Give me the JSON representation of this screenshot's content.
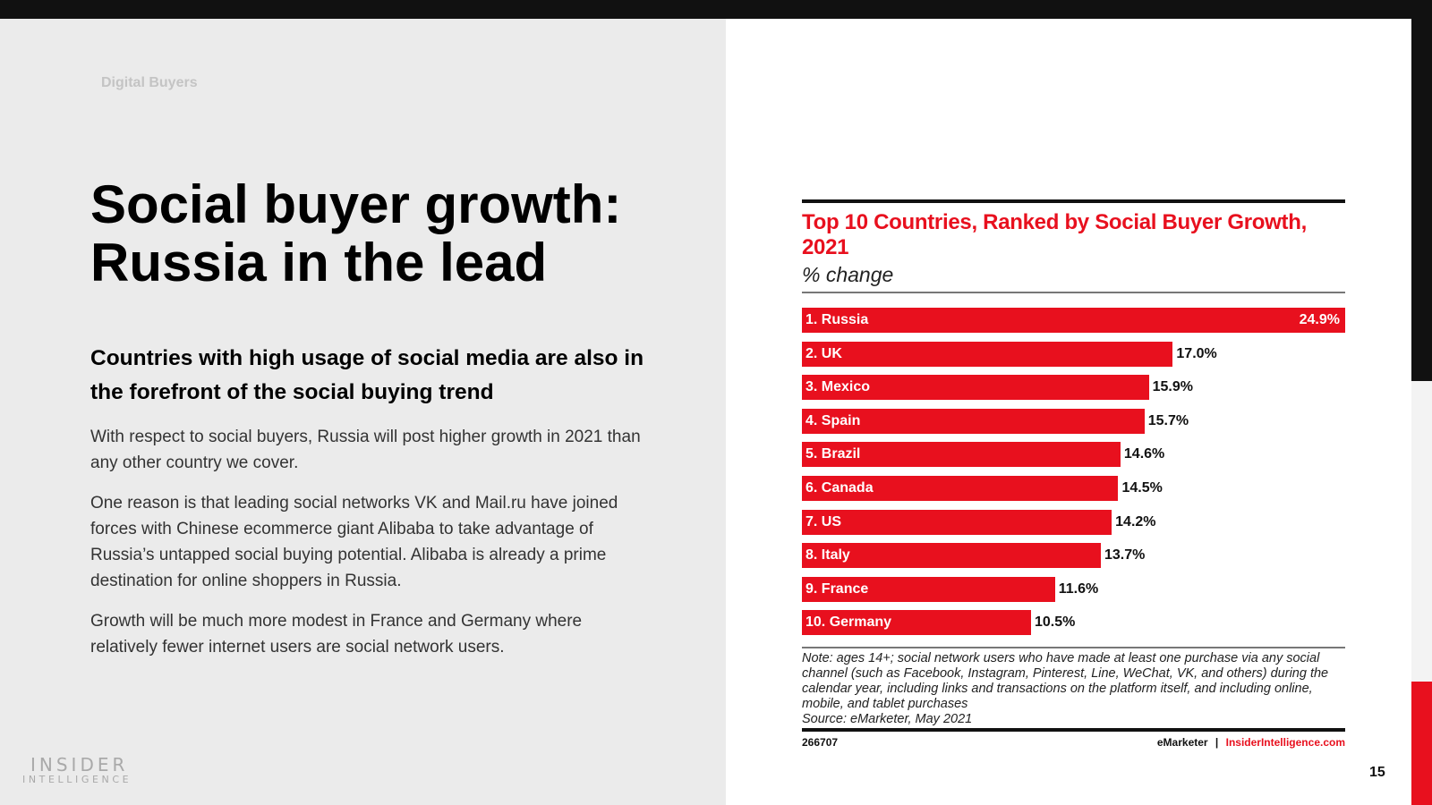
{
  "section_label": "Digital Buyers",
  "headline": "Social buyer growth: Russia in the lead",
  "subheadline": "Countries with high usage of social media are also in the forefront of the social buying trend",
  "paragraphs": [
    "With respect to social buyers, Russia will post higher growth in 2021 than any other country we cover.",
    "One reason is that leading social networks VK and Mail.ru have joined forces with Chinese ecommerce giant Alibaba to take advantage of Russia’s untapped social buying potential. Alibaba is already a prime destination for online shoppers in Russia.",
    "Growth will be much more modest in France and Germany where relatively fewer internet users are social network users."
  ],
  "logo": {
    "line1": "INSIDER",
    "line2": "INTELLIGENCE"
  },
  "page_number": "15",
  "colors": {
    "accent": "#e8101e",
    "left_panel": "#ebebeb",
    "top_bar": "#111111"
  },
  "chart_data": {
    "type": "bar",
    "orientation": "horizontal",
    "title": "Top 10 Countries, Ranked by Social Buyer Growth, 2021",
    "subtitle": "% change",
    "categories": [
      "1. Russia",
      "2. UK",
      "3. Mexico",
      "4. Spain",
      "5. Brazil",
      "6. Canada",
      "7. US",
      "8. Italy",
      "9. France",
      "10. Germany"
    ],
    "values": [
      24.9,
      17.0,
      15.9,
      15.7,
      14.6,
      14.5,
      14.2,
      13.7,
      11.6,
      10.5
    ],
    "value_labels": [
      "24.9%",
      "17.0%",
      "15.9%",
      "15.7%",
      "14.6%",
      "14.5%",
      "14.2%",
      "13.7%",
      "11.6%",
      "10.5%"
    ],
    "bar_color": "#e8101e",
    "note": "Note: ages 14+; social network users who have made at least one purchase via any social channel (such as Facebook, Instagram, Pinterest, Line, WeChat, VK, and others) during the calendar year, including links and transactions on the platform itself, and including online, mobile, and tablet purchases",
    "source": "Source: eMarketer, May 2021",
    "chart_id": "266707",
    "footer_brand": "eMarketer",
    "footer_sep": "|",
    "footer_site": "InsiderIntelligence.com"
  }
}
